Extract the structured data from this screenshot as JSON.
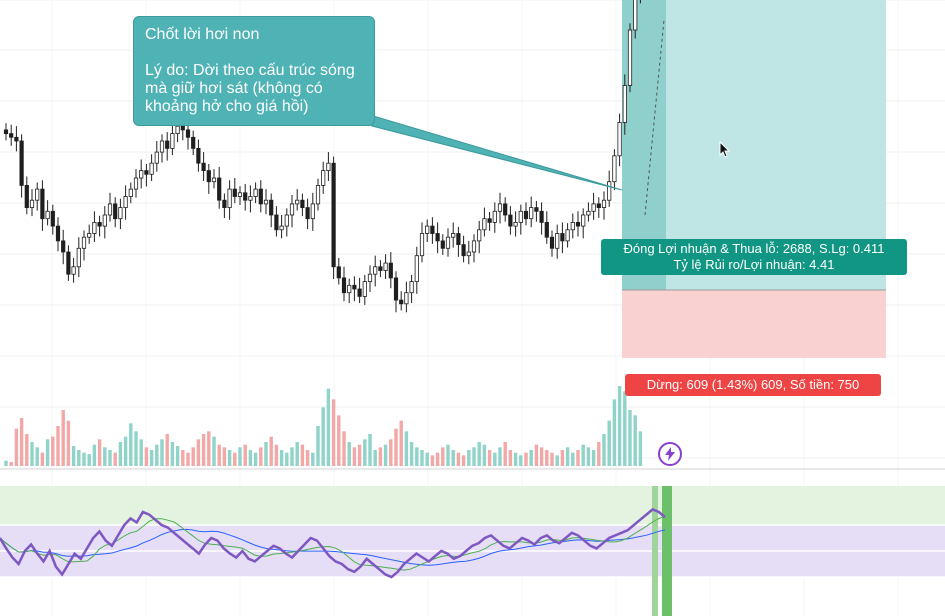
{
  "chart_data": {
    "type": "candlestick",
    "panes": [
      "price",
      "volume",
      "rsi"
    ],
    "note": {
      "title": "Chốt lời hơi non",
      "body": "Lý do: Dời theo cấu trúc sóng mà giữ hơi sát (không có khoảng hở cho giá hồi)"
    },
    "position": {
      "target_line1": "Đóng Lợi nhuận & Thua lỗ: 2688, S.Lg: 0.411",
      "target_line2": "Tỷ lệ Rủi ro/Lợi nhuận: 4.41",
      "stop_label": "Dừng: 609 (1.43%) 609, Số tiền: 750"
    },
    "price_range": [
      0,
      100
    ],
    "close": [
      72,
      71,
      70,
      58,
      52,
      54,
      57,
      49,
      51,
      47,
      43,
      40,
      34,
      36,
      41,
      44,
      45,
      48,
      47,
      50,
      53,
      49,
      52,
      55,
      57,
      60,
      62,
      61,
      64,
      67,
      70,
      68,
      72,
      74,
      73,
      71,
      68,
      64,
      62,
      59,
      60,
      54,
      52,
      57,
      55,
      56,
      54,
      55,
      57,
      53,
      54,
      50,
      46,
      47,
      50,
      53,
      54,
      52,
      49,
      53,
      58,
      62,
      64,
      36,
      33,
      29,
      31,
      30,
      28,
      32,
      34,
      36,
      35,
      37,
      33,
      27,
      26,
      29,
      32,
      39,
      45,
      47,
      45,
      43,
      41,
      44,
      45,
      42,
      39,
      40,
      43,
      46,
      49,
      48,
      51,
      53,
      50,
      47,
      48,
      51,
      49,
      52,
      51,
      48,
      44,
      41,
      45,
      43,
      46,
      48,
      47,
      50,
      51,
      53,
      52,
      54,
      59,
      66,
      75,
      85,
      100,
      110,
      118
    ],
    "volume": [
      4,
      3,
      28,
      36,
      24,
      18,
      14,
      10,
      20,
      22,
      30,
      42,
      34,
      15,
      12,
      10,
      9,
      16,
      20,
      14,
      12,
      10,
      18,
      22,
      32,
      26,
      20,
      14,
      12,
      16,
      20,
      24,
      18,
      15,
      12,
      10,
      14,
      20,
      24,
      26,
      22,
      16,
      14,
      12,
      10,
      14,
      16,
      12,
      10,
      14,
      18,
      22,
      16,
      12,
      10,
      14,
      18,
      16,
      12,
      10,
      30,
      44,
      58,
      50,
      38,
      26,
      18,
      14,
      16,
      20,
      24,
      12,
      14,
      16,
      20,
      28,
      34,
      26,
      18,
      14,
      12,
      10,
      8,
      10,
      14,
      16,
      12,
      10,
      8,
      12,
      14,
      18,
      16,
      12,
      10,
      14,
      18,
      12,
      10,
      8,
      10,
      12,
      16,
      14,
      12,
      10,
      8,
      12,
      14,
      10,
      12,
      16,
      14,
      12,
      18,
      24,
      34,
      50,
      60,
      56,
      42,
      38,
      26
    ],
    "rsi": [
      60,
      52,
      45,
      40,
      50,
      55,
      48,
      42,
      50,
      38,
      32,
      40,
      48,
      44,
      52,
      60,
      65,
      58,
      54,
      62,
      70,
      75,
      72,
      80,
      78,
      74,
      70,
      68,
      64,
      60,
      56,
      52,
      48,
      55,
      60,
      58,
      52,
      48,
      45,
      50,
      44,
      42,
      46,
      50,
      54,
      52,
      48,
      45,
      50,
      55,
      60,
      58,
      52,
      46,
      42,
      40,
      36,
      34,
      38,
      44,
      40,
      36,
      32,
      30,
      34,
      40,
      44,
      48,
      45,
      42,
      46,
      50,
      48,
      44,
      46,
      50,
      54,
      56,
      60,
      62,
      58,
      54,
      52,
      56,
      60,
      58,
      55,
      60,
      62,
      58,
      56,
      60,
      64,
      62,
      58,
      54,
      52,
      56,
      60,
      62,
      64,
      66,
      70,
      74,
      78,
      82,
      80,
      76
    ],
    "rsi_ylim": [
      0,
      100
    ],
    "rsi_bands": [
      30,
      70
    ]
  },
  "icons": {
    "alert": "lightning-alert-icon",
    "pointer": "mouse-cursor-icon"
  },
  "colors": {
    "up": "#26a69a",
    "down": "#ef5350",
    "candle": "#1f1f1f",
    "profit_zone": "#bfe6e4",
    "loss_zone": "#f9d1d1",
    "rsi_line": "#7e57c2",
    "rsi_band": "#e6def6",
    "rsi_ma": "#4caf50",
    "rsi_ema": "#2962ff"
  }
}
